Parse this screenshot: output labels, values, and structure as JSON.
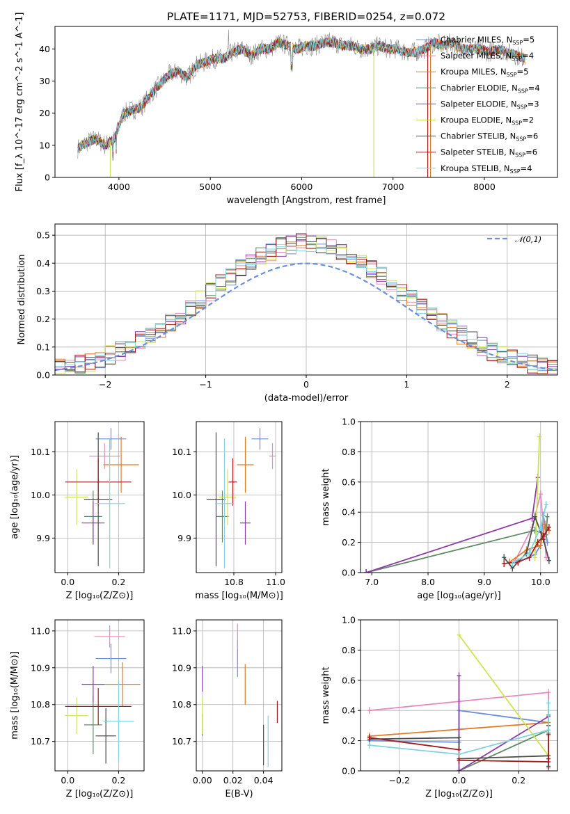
{
  "figure": {
    "title": "PLATE=1171, MJD=52753, FIBERID=0254, z=0.072"
  },
  "models": [
    {
      "label": "Chabrier MILES, N_SSP=5",
      "color": "#6a8fdc"
    },
    {
      "label": "Salpeter MILES, N_SSP=4",
      "color": "#e58bbf"
    },
    {
      "label": "Kroupa MILES, N_SSP=5",
      "color": "#e07b25"
    },
    {
      "label": "Chabrier ELODIE, N_SSP=4",
      "color": "#5e8a64"
    },
    {
      "label": "Salpeter ELODIE, N_SSP=3",
      "color": "#8e3aa8"
    },
    {
      "label": "Kroupa ELODIE, N_SSP=2",
      "color": "#cfe354"
    },
    {
      "label": "Chabrier STELIB, N_SSP=6",
      "color": "#4d4d4d"
    },
    {
      "label": "Salpeter STELIB, N_SSP=6",
      "color": "#a11c1c"
    },
    {
      "label": "Kroupa STELIB, N_SSP=4",
      "color": "#7fd3dd"
    }
  ],
  "chart_data": [
    {
      "id": "spectrum",
      "type": "line",
      "title": "PLATE=1171, MJD=52753, FIBERID=0254, z=0.072",
      "xlabel": "wavelength [Angstrom, rest frame]",
      "ylabel": "Flux [f_λ 10^-17 erg cm^-2 s^-1 A^-1]",
      "xlim": [
        3300,
        8800
      ],
      "ylim": [
        0,
        47
      ],
      "xticks": [
        4000,
        5000,
        6000,
        7000,
        8000
      ],
      "yticks": [
        0,
        10,
        20,
        30,
        40
      ],
      "legend": "upper-right",
      "spectrum_x": [
        3550,
        3650,
        3750,
        3850,
        3950,
        4050,
        4150,
        4250,
        4350,
        4450,
        4550,
        4650,
        4750,
        4850,
        4950,
        5050,
        5150,
        5250,
        5350,
        5450,
        5550,
        5650,
        5750,
        5850,
        5950,
        6050,
        6150,
        6250,
        6350,
        6450,
        6550,
        6650,
        6750,
        6850,
        6950,
        7050,
        7150,
        7250,
        7350,
        7450,
        7550,
        7650,
        7750,
        7850,
        7950,
        8050,
        8150,
        8250,
        8350,
        8450
      ],
      "spectrum_y": [
        9,
        11,
        12,
        10,
        12,
        20,
        21,
        22,
        26,
        29,
        32,
        33,
        31,
        35,
        36,
        37,
        37,
        39,
        40,
        38,
        40,
        40,
        42,
        41,
        40,
        41,
        41,
        42,
        42,
        41,
        41,
        40,
        40,
        41,
        40,
        40,
        39,
        39,
        40,
        42,
        41,
        42,
        40,
        40,
        40,
        39,
        40,
        39,
        38,
        37
      ]
    },
    {
      "id": "residuals",
      "type": "line",
      "xlabel": "(data-model)/error",
      "ylabel": "Normed distribution",
      "xlim": [
        -2.5,
        2.5
      ],
      "ylim": [
        0,
        0.54
      ],
      "xticks": [
        -2,
        -1,
        0,
        1,
        2
      ],
      "yticks": [
        0.0,
        0.1,
        0.2,
        0.3,
        0.4,
        0.5
      ],
      "grid": true,
      "legend": "upper-right",
      "reference_label": "𝒩(0,1)",
      "bin_width": 0.1
    },
    {
      "id": "age-vs-Z",
      "type": "scatter",
      "xlabel": "Z [log10(Z/Z⊙)]",
      "ylabel": "age [log10(age/yr)]",
      "xlim": [
        -0.05,
        0.3
      ],
      "ylim": [
        9.82,
        10.17
      ],
      "xticks": [
        0.0,
        0.2
      ],
      "yticks": [
        9.9,
        10.0,
        10.1
      ],
      "grid": true,
      "points": [
        {
          "x": 0.17,
          "y": 10.13,
          "xerr": 0.06,
          "yerr": 0.025
        },
        {
          "x": 0.145,
          "y": 10.09,
          "xerr": 0.06,
          "yerr": 0.03
        },
        {
          "x": 0.21,
          "y": 10.07,
          "xerr": 0.07,
          "yerr": 0.065
        },
        {
          "x": 0.1,
          "y": 9.95,
          "xerr": 0.035,
          "yerr": 0.06
        },
        {
          "x": 0.1,
          "y": 9.935,
          "xerr": 0.045,
          "yerr": 0.05
        },
        {
          "x": 0.035,
          "y": 9.995,
          "xerr": 0.045,
          "yerr": 0.065
        },
        {
          "x": 0.12,
          "y": 9.99,
          "xerr": 0.055,
          "yerr": 0.155
        },
        {
          "x": 0.12,
          "y": 10.03,
          "xerr": 0.13,
          "yerr": 0.055
        },
        {
          "x": 0.165,
          "y": 9.98,
          "xerr": 0.06,
          "yerr": 0.15
        }
      ]
    },
    {
      "id": "age-vs-mass",
      "type": "scatter",
      "xlabel": "mass [log10(M/M⊙)]",
      "ylabel": "",
      "xlim": [
        10.62,
        11.03
      ],
      "ylim": [
        9.82,
        10.17
      ],
      "xticks": [
        10.8,
        11.0
      ],
      "yticks": [
        9.9,
        10.0,
        10.1
      ],
      "grid": true,
      "points": [
        {
          "x": 10.925,
          "y": 10.13,
          "xerr": 0.04,
          "yerr": 0.025
        },
        {
          "x": 10.985,
          "y": 10.09,
          "xerr": 0.015,
          "yerr": 0.03
        },
        {
          "x": 10.855,
          "y": 10.07,
          "xerr": 0.04,
          "yerr": 0.065
        },
        {
          "x": 10.745,
          "y": 9.95,
          "xerr": 0.03,
          "yerr": 0.06
        },
        {
          "x": 10.855,
          "y": 9.935,
          "xerr": 0.025,
          "yerr": 0.05
        },
        {
          "x": 10.77,
          "y": 9.995,
          "xerr": 0.04,
          "yerr": 0.065
        },
        {
          "x": 10.715,
          "y": 9.99,
          "xerr": 0.045,
          "yerr": 0.155
        },
        {
          "x": 10.795,
          "y": 10.03,
          "xerr": 0.02,
          "yerr": 0.055
        },
        {
          "x": 10.755,
          "y": 9.98,
          "xerr": 0.045,
          "yerr": 0.15
        }
      ]
    },
    {
      "id": "weight-vs-age",
      "type": "line",
      "xlabel": "age [log10(age/yr)]",
      "ylabel": "mass weight",
      "xlim": [
        6.8,
        10.3
      ],
      "ylim": [
        0,
        1.0
      ],
      "xticks": [
        7,
        8,
        9,
        10
      ],
      "yticks": [
        0.0,
        0.2,
        0.4,
        0.6,
        0.8,
        1.0
      ],
      "grid": true,
      "series": [
        {
          "x": [
            9.6,
            9.9,
            10.0,
            10.05,
            10.12
          ],
          "y": [
            0.07,
            0.12,
            0.18,
            0.38,
            0.2
          ]
        },
        {
          "x": [
            9.55,
            9.85,
            10.0,
            10.1
          ],
          "y": [
            0.08,
            0.3,
            0.52,
            0.1
          ]
        },
        {
          "x": [
            9.45,
            9.75,
            10.0,
            10.08,
            10.15
          ],
          "y": [
            0.07,
            0.15,
            0.18,
            0.32,
            0.28
          ]
        },
        {
          "x": [
            6.9,
            9.9,
            10.1,
            10.12
          ],
          "y": [
            0.0,
            0.28,
            0.25,
            0.37
          ]
        },
        {
          "x": [
            6.9,
            9.85,
            9.95
          ],
          "y": [
            0.0,
            0.36,
            0.63
          ]
        },
        {
          "x": [
            9.9,
            9.98
          ],
          "y": [
            0.1,
            0.9
          ]
        },
        {
          "x": [
            9.35,
            9.5,
            9.75,
            9.9,
            10.05,
            10.15
          ],
          "y": [
            0.1,
            0.03,
            0.13,
            0.37,
            0.22,
            0.08
          ]
        },
        {
          "x": [
            9.35,
            9.6,
            9.8,
            9.95,
            10.05,
            10.15
          ],
          "y": [
            0.06,
            0.07,
            0.1,
            0.2,
            0.24,
            0.3
          ]
        },
        {
          "x": [
            9.5,
            9.8,
            10.0,
            10.1
          ],
          "y": [
            0.06,
            0.13,
            0.3,
            0.45
          ]
        }
      ]
    },
    {
      "id": "mass-vs-Z",
      "type": "scatter",
      "xlabel": "Z [log10(Z/Z⊙)]",
      "ylabel": "mass [log10(M/M⊙)]",
      "xlim": [
        -0.05,
        0.3
      ],
      "ylim": [
        10.62,
        11.03
      ],
      "xticks": [
        0.0,
        0.2
      ],
      "yticks": [
        10.7,
        10.8,
        10.9,
        11.0
      ],
      "grid": true,
      "points": [
        {
          "x": 0.17,
          "y": 10.925,
          "xerr": 0.06,
          "yerr": 0.04
        },
        {
          "x": 0.165,
          "y": 10.985,
          "xerr": 0.06,
          "yerr": 0.03
        },
        {
          "x": 0.215,
          "y": 10.855,
          "xerr": 0.07,
          "yerr": 0.06
        },
        {
          "x": 0.1,
          "y": 10.745,
          "xerr": 0.035,
          "yerr": 0.08
        },
        {
          "x": 0.1,
          "y": 10.855,
          "xerr": 0.045,
          "yerr": 0.05
        },
        {
          "x": 0.035,
          "y": 10.77,
          "xerr": 0.045,
          "yerr": 0.05
        },
        {
          "x": 0.15,
          "y": 10.715,
          "xerr": 0.04,
          "yerr": 0.075
        },
        {
          "x": 0.12,
          "y": 10.795,
          "xerr": 0.13,
          "yerr": 0.05
        },
        {
          "x": 0.2,
          "y": 10.755,
          "xerr": 0.06,
          "yerr": 0.11
        }
      ]
    },
    {
      "id": "mass-vs-EBV",
      "type": "scatter",
      "xlabel": "E(B-V)",
      "ylabel": "",
      "xlim": [
        -0.004,
        0.052
      ],
      "ylim": [
        10.62,
        11.03
      ],
      "xticks": [
        0.0,
        0.02,
        0.04
      ],
      "yticks": [
        10.7,
        10.8,
        10.9,
        11.0
      ],
      "grid": true,
      "points": [
        {
          "x": 0.023,
          "y": 10.925,
          "xerr": 0.0,
          "yerr": 0.05
        },
        {
          "x": 0.023,
          "y": 10.985,
          "xerr": 0.0,
          "yerr": 0.035
        },
        {
          "x": 0.028,
          "y": 10.855,
          "xerr": 0.0,
          "yerr": 0.055
        },
        {
          "x": 0.0,
          "y": 10.745,
          "xerr": 0.0,
          "yerr": 0.03
        },
        {
          "x": 0.0,
          "y": 10.87,
          "xerr": 0.0,
          "yerr": 0.035
        },
        {
          "x": 0.0,
          "y": 10.77,
          "xerr": 0.0,
          "yerr": 0.05
        },
        {
          "x": 0.04,
          "y": 10.69,
          "xerr": 0.0,
          "yerr": 0.055
        },
        {
          "x": 0.049,
          "y": 10.78,
          "xerr": 0.0,
          "yerr": 0.03
        },
        {
          "x": 0.043,
          "y": 10.7,
          "xerr": 0.0,
          "yerr": 0.07
        }
      ]
    },
    {
      "id": "weight-vs-Z",
      "type": "line",
      "xlabel": "Z [log10(Z/Z⊙)]",
      "ylabel": "mass weight",
      "xlim": [
        -0.33,
        0.33
      ],
      "ylim": [
        0,
        1.0
      ],
      "xticks": [
        -0.2,
        0.0,
        0.2
      ],
      "yticks": [
        0.0,
        0.2,
        0.4,
        0.6,
        0.8,
        1.0
      ],
      "grid": true,
      "series": [
        {
          "x": [
            -0.3,
            0.0,
            0.0,
            0.3,
            0.3
          ],
          "y": [
            0.2,
            0.19,
            0.4,
            0.32,
            0.37
          ]
        },
        {
          "x": [
            -0.3,
            0.3,
            0.3
          ],
          "y": [
            0.4,
            0.52,
            0.02
          ]
        },
        {
          "x": [
            -0.3,
            0.3,
            0.3
          ],
          "y": [
            0.23,
            0.32,
            0.3
          ]
        },
        {
          "x": [
            0.0,
            0.3,
            0.3,
            0.3
          ],
          "y": [
            0.0,
            0.27,
            0.25,
            0.37
          ]
        },
        {
          "x": [
            0.0,
            0.0,
            0.3
          ],
          "y": [
            0.63,
            0.0,
            0.36
          ]
        },
        {
          "x": [
            0.0,
            0.3
          ],
          "y": [
            0.9,
            0.1
          ]
        },
        {
          "x": [
            -0.3,
            0.0,
            0.0,
            0.3,
            0.3,
            0.3
          ],
          "y": [
            0.21,
            0.22,
            0.08,
            0.1,
            0.03,
            0.08
          ]
        },
        {
          "x": [
            -0.3,
            0.0,
            0.0,
            0.3,
            0.3,
            0.3
          ],
          "y": [
            0.22,
            0.14,
            0.07,
            0.06,
            0.24,
            0.3
          ]
        },
        {
          "x": [
            -0.3,
            0.0,
            0.3,
            0.3
          ],
          "y": [
            0.17,
            0.11,
            0.27,
            0.45
          ]
        }
      ]
    }
  ]
}
